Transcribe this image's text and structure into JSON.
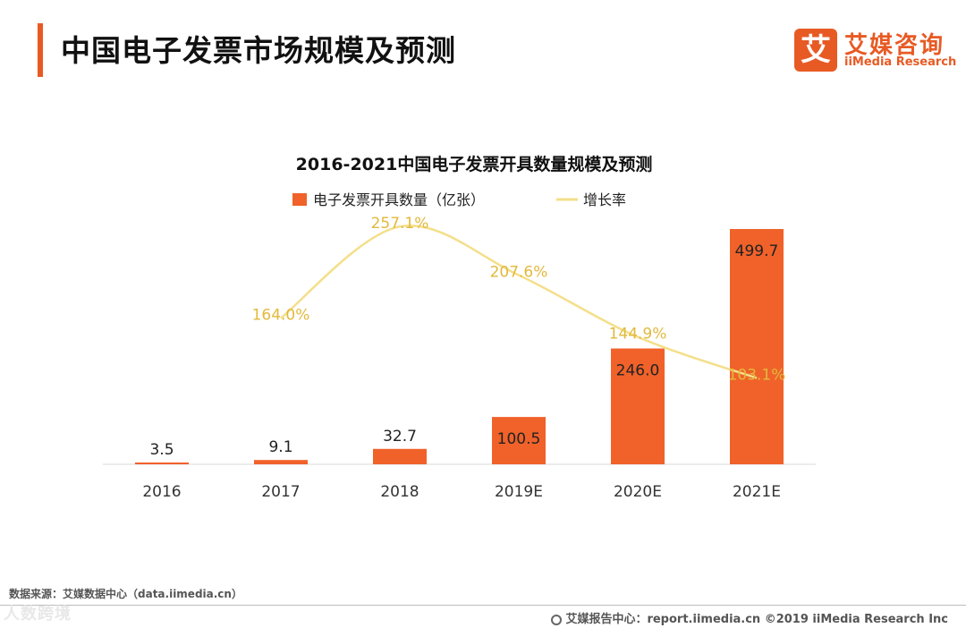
{
  "header": {
    "title": "中国电子发票市场规模及预测",
    "logo_cn": "艾媒咨询",
    "logo_en": "iiMedia Research",
    "logo_mark": "艾"
  },
  "colors": {
    "accent": "#e85a24",
    "bar": "#f0622a",
    "line": "#f4df8a",
    "rate_text": "#e2b93c"
  },
  "chart_data": {
    "type": "bar",
    "title": "2016-2021中国电子发票开具数量规模及预测",
    "categories": [
      "2016",
      "2017",
      "2018",
      "2019E",
      "2020E",
      "2021E"
    ],
    "series": [
      {
        "name": "电子发票开具数量（亿张）",
        "type": "bar",
        "values": [
          3.5,
          9.1,
          32.7,
          100.5,
          246.0,
          499.7
        ],
        "labels": [
          "3.5",
          "9.1",
          "32.7",
          "100.5",
          "246.0",
          "499.7"
        ]
      },
      {
        "name": "增长率",
        "type": "line",
        "values": [
          null,
          164.0,
          257.1,
          207.6,
          144.9,
          103.1
        ],
        "labels": [
          "",
          "164.0%",
          "257.1%",
          "207.6%",
          "144.9%",
          "103.1%"
        ]
      }
    ],
    "legend_placement": "top-center",
    "grid": false
  },
  "footer": {
    "source": "数据来源：艾媒数据中心（data.iimedia.cn）",
    "copyright": "艾媒报告中心：report.iimedia.cn ©2019  iiMedia Research  Inc",
    "watermark": "人数跨境"
  }
}
